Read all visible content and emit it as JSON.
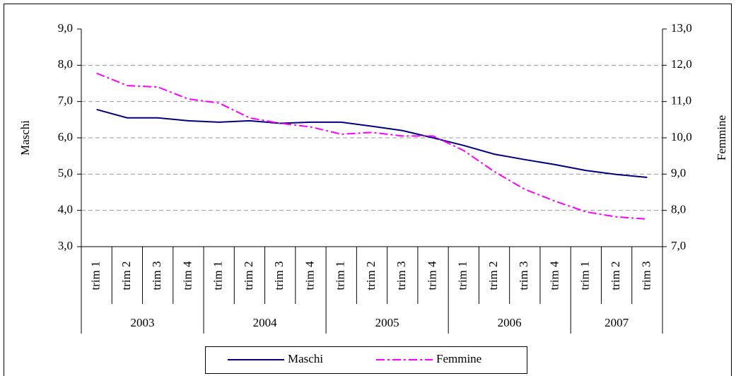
{
  "chart_data": {
    "type": "line",
    "categories": [
      "trim 1",
      "trim 2",
      "trim 3",
      "trim 4",
      "trim 1",
      "trim 2",
      "trim 3",
      "trim 4",
      "trim 1",
      "trim 2",
      "trim 3",
      "trim 4",
      "trim 1",
      "trim 2",
      "trim 3",
      "trim 4",
      "trim 1",
      "trim 2",
      "trim 3"
    ],
    "category_groups": [
      "2003",
      "2004",
      "2005",
      "2006",
      "2007"
    ],
    "y_label": "Maschi",
    "y2_label": "Femmine",
    "ylim": [
      3,
      9
    ],
    "yticks": [
      {
        "value": 3,
        "label": "3,0"
      },
      {
        "value": 4,
        "label": "4,0"
      },
      {
        "value": 5,
        "label": "5,0"
      },
      {
        "value": 6,
        "label": "6,0"
      },
      {
        "value": 7,
        "label": "7,0"
      },
      {
        "value": 8,
        "label": "8,0"
      },
      {
        "value": 9,
        "label": "9,0"
      }
    ],
    "y2lim": [
      7,
      13
    ],
    "y2ticks": [
      {
        "value": 7,
        "label": "7,0"
      },
      {
        "value": 8,
        "label": "8,0"
      },
      {
        "value": 9,
        "label": "9,0"
      },
      {
        "value": 10,
        "label": "10,0"
      },
      {
        "value": 11,
        "label": "11,0"
      },
      {
        "value": 12,
        "label": "12,0"
      },
      {
        "value": 13,
        "label": "13,0"
      }
    ],
    "grid": true,
    "series": [
      {
        "name": "Maschi",
        "color": "#000080",
        "values": [
          6.78,
          6.55,
          6.55,
          6.47,
          6.43,
          6.47,
          6.4,
          6.43,
          6.43,
          6.32,
          6.2,
          6.0,
          5.79,
          5.55,
          5.4,
          5.26,
          5.1,
          4.99,
          4.91
        ]
      },
      {
        "name": "Femmine",
        "color": "#ff00ff",
        "axis": "y2",
        "values": [
          11.78,
          11.44,
          11.4,
          11.07,
          10.96,
          10.55,
          10.4,
          10.3,
          10.1,
          10.15,
          10.05,
          10.05,
          9.65,
          9.07,
          8.58,
          8.25,
          7.96,
          7.82,
          7.76
        ]
      }
    ]
  }
}
